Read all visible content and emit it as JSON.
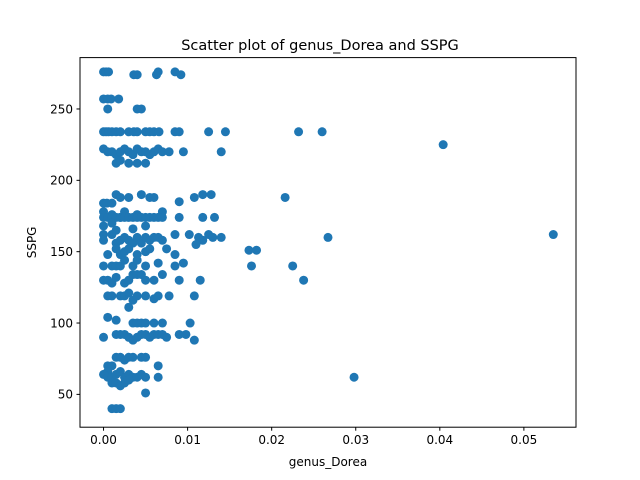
{
  "chart_data": {
    "type": "scatter",
    "title": "Scatter plot of genus_Dorea and SSPG",
    "xlabel": "genus_Dorea",
    "ylabel": "SSPG",
    "xlim": [
      -0.0028,
      0.0562
    ],
    "ylim": [
      27,
      286
    ],
    "xticks": [
      0.0,
      0.01,
      0.02,
      0.03,
      0.04,
      0.05
    ],
    "xtick_labels": [
      "0.00",
      "0.01",
      "0.02",
      "0.03",
      "0.04",
      "0.05"
    ],
    "yticks": [
      50,
      100,
      150,
      200,
      250
    ],
    "ytick_labels": [
      "50",
      "100",
      "150",
      "200",
      "250"
    ],
    "grid": false,
    "color": "#1f77b4",
    "points": [
      [
        0.0,
        276
      ],
      [
        0.0003,
        276
      ],
      [
        0.0006,
        276
      ],
      [
        0.0036,
        274
      ],
      [
        0.004,
        274
      ],
      [
        0.0063,
        274
      ],
      [
        0.0065,
        276
      ],
      [
        0.0085,
        276
      ],
      [
        0.0092,
        274
      ],
      [
        0.0,
        257
      ],
      [
        0.0005,
        257
      ],
      [
        0.0009,
        257
      ],
      [
        0.0018,
        257
      ],
      [
        0.0005,
        250
      ],
      [
        0.004,
        250
      ],
      [
        0.0045,
        250
      ],
      [
        0.0,
        234
      ],
      [
        0.0003,
        234
      ],
      [
        0.0006,
        234
      ],
      [
        0.001,
        234
      ],
      [
        0.0015,
        234
      ],
      [
        0.002,
        234
      ],
      [
        0.003,
        234
      ],
      [
        0.0036,
        234
      ],
      [
        0.004,
        234
      ],
      [
        0.005,
        234
      ],
      [
        0.0055,
        234
      ],
      [
        0.006,
        234
      ],
      [
        0.0066,
        234
      ],
      [
        0.0085,
        234
      ],
      [
        0.009,
        234
      ],
      [
        0.0125,
        234
      ],
      [
        0.0145,
        234
      ],
      [
        0.0232,
        234
      ],
      [
        0.026,
        234
      ],
      [
        0.0,
        222
      ],
      [
        0.0005,
        220
      ],
      [
        0.001,
        220
      ],
      [
        0.0015,
        218
      ],
      [
        0.002,
        220
      ],
      [
        0.0025,
        222
      ],
      [
        0.003,
        220
      ],
      [
        0.0035,
        218
      ],
      [
        0.004,
        222
      ],
      [
        0.0045,
        220
      ],
      [
        0.005,
        220
      ],
      [
        0.0055,
        218
      ],
      [
        0.006,
        220
      ],
      [
        0.0065,
        222
      ],
      [
        0.007,
        220
      ],
      [
        0.0078,
        220
      ],
      [
        0.0095,
        220
      ],
      [
        0.014,
        220
      ],
      [
        0.0404,
        225
      ],
      [
        0.0015,
        212
      ],
      [
        0.002,
        214
      ],
      [
        0.003,
        212
      ],
      [
        0.004,
        212
      ],
      [
        0.005,
        212
      ],
      [
        0.0,
        184
      ],
      [
        0.0004,
        184
      ],
      [
        0.001,
        184
      ],
      [
        0.0015,
        190
      ],
      [
        0.002,
        188
      ],
      [
        0.003,
        188
      ],
      [
        0.0045,
        190
      ],
      [
        0.0055,
        188
      ],
      [
        0.006,
        188
      ],
      [
        0.009,
        185
      ],
      [
        0.0108,
        188
      ],
      [
        0.0118,
        190
      ],
      [
        0.0128,
        190
      ],
      [
        0.0216,
        188
      ],
      [
        0.0,
        178
      ],
      [
        0.001,
        176
      ],
      [
        0.002,
        174
      ],
      [
        0.0025,
        178
      ],
      [
        0.004,
        176
      ],
      [
        0.007,
        178
      ],
      [
        0.0,
        174
      ],
      [
        0.0005,
        174
      ],
      [
        0.001,
        174
      ],
      [
        0.0015,
        174
      ],
      [
        0.002,
        174
      ],
      [
        0.0025,
        174
      ],
      [
        0.003,
        174
      ],
      [
        0.0035,
        174
      ],
      [
        0.004,
        174
      ],
      [
        0.0045,
        174
      ],
      [
        0.005,
        174
      ],
      [
        0.0055,
        174
      ],
      [
        0.006,
        174
      ],
      [
        0.0065,
        174
      ],
      [
        0.007,
        174
      ],
      [
        0.009,
        174
      ],
      [
        0.0118,
        174
      ],
      [
        0.0132,
        174
      ],
      [
        0.0,
        168
      ],
      [
        0.001,
        170
      ],
      [
        0.0015,
        165
      ],
      [
        0.0035,
        166
      ],
      [
        0.005,
        168
      ],
      [
        0.0,
        162
      ],
      [
        0.0,
        158
      ],
      [
        0.001,
        162
      ],
      [
        0.0015,
        156
      ],
      [
        0.002,
        158
      ],
      [
        0.0025,
        160
      ],
      [
        0.003,
        158
      ],
      [
        0.0035,
        156
      ],
      [
        0.004,
        160
      ],
      [
        0.0045,
        156
      ],
      [
        0.005,
        160
      ],
      [
        0.0055,
        158
      ],
      [
        0.006,
        160
      ],
      [
        0.0065,
        160
      ],
      [
        0.007,
        158
      ],
      [
        0.0085,
        162
      ],
      [
        0.0102,
        162
      ],
      [
        0.0113,
        160
      ],
      [
        0.0118,
        158
      ],
      [
        0.0125,
        162
      ],
      [
        0.013,
        160
      ],
      [
        0.014,
        160
      ],
      [
        0.0267,
        160
      ],
      [
        0.0535,
        162
      ],
      [
        0.0005,
        148
      ],
      [
        0.0015,
        152
      ],
      [
        0.002,
        148
      ],
      [
        0.0025,
        150
      ],
      [
        0.003,
        152
      ],
      [
        0.004,
        148
      ],
      [
        0.005,
        150
      ],
      [
        0.0055,
        152
      ],
      [
        0.0075,
        152
      ],
      [
        0.0085,
        148
      ],
      [
        0.011,
        155
      ],
      [
        0.0173,
        151
      ],
      [
        0.0182,
        151
      ],
      [
        0.0,
        140
      ],
      [
        0.001,
        140
      ],
      [
        0.0015,
        140
      ],
      [
        0.002,
        140
      ],
      [
        0.0025,
        144
      ],
      [
        0.0035,
        140
      ],
      [
        0.004,
        144
      ],
      [
        0.005,
        140
      ],
      [
        0.0065,
        142
      ],
      [
        0.0085,
        140
      ],
      [
        0.0095,
        142
      ],
      [
        0.0176,
        140
      ],
      [
        0.0225,
        140
      ],
      [
        0.0,
        130
      ],
      [
        0.0005,
        130
      ],
      [
        0.001,
        128
      ],
      [
        0.0015,
        132
      ],
      [
        0.0025,
        128
      ],
      [
        0.003,
        130
      ],
      [
        0.0035,
        134
      ],
      [
        0.004,
        134
      ],
      [
        0.0045,
        134
      ],
      [
        0.005,
        130
      ],
      [
        0.006,
        130
      ],
      [
        0.007,
        134
      ],
      [
        0.009,
        130
      ],
      [
        0.0115,
        130
      ],
      [
        0.0238,
        130
      ],
      [
        0.0005,
        119
      ],
      [
        0.001,
        119
      ],
      [
        0.002,
        119
      ],
      [
        0.0025,
        119
      ],
      [
        0.003,
        121
      ],
      [
        0.0035,
        116
      ],
      [
        0.004,
        119
      ],
      [
        0.005,
        119
      ],
      [
        0.006,
        117
      ],
      [
        0.0065,
        119
      ],
      [
        0.0078,
        119
      ],
      [
        0.0108,
        119
      ],
      [
        0.003,
        111
      ],
      [
        0.0005,
        104
      ],
      [
        0.0015,
        102
      ],
      [
        0.0035,
        100
      ],
      [
        0.004,
        100
      ],
      [
        0.0045,
        100
      ],
      [
        0.005,
        100
      ],
      [
        0.006,
        100
      ],
      [
        0.007,
        100
      ],
      [
        0.0103,
        100
      ],
      [
        0.0,
        90
      ],
      [
        0.0015,
        92
      ],
      [
        0.002,
        92
      ],
      [
        0.0025,
        92
      ],
      [
        0.003,
        90
      ],
      [
        0.0035,
        88
      ],
      [
        0.004,
        90
      ],
      [
        0.0045,
        92
      ],
      [
        0.005,
        92
      ],
      [
        0.0055,
        90
      ],
      [
        0.006,
        92
      ],
      [
        0.0065,
        92
      ],
      [
        0.007,
        92
      ],
      [
        0.0075,
        90
      ],
      [
        0.009,
        92
      ],
      [
        0.0098,
        92
      ],
      [
        0.0108,
        88
      ],
      [
        0.0015,
        76
      ],
      [
        0.002,
        76
      ],
      [
        0.0025,
        74
      ],
      [
        0.003,
        76
      ],
      [
        0.0035,
        76
      ],
      [
        0.0045,
        76
      ],
      [
        0.005,
        76
      ],
      [
        0.0065,
        70
      ],
      [
        0.0005,
        70
      ],
      [
        0.001,
        70
      ],
      [
        0.0005,
        66
      ],
      [
        0.0,
        64
      ],
      [
        0.0005,
        62
      ],
      [
        0.001,
        62
      ],
      [
        0.0015,
        64
      ],
      [
        0.002,
        66
      ],
      [
        0.0025,
        62
      ],
      [
        0.003,
        64
      ],
      [
        0.0035,
        62
      ],
      [
        0.004,
        62
      ],
      [
        0.0045,
        64
      ],
      [
        0.005,
        62
      ],
      [
        0.0065,
        62
      ],
      [
        0.0298,
        62
      ],
      [
        0.001,
        58
      ],
      [
        0.0015,
        58
      ],
      [
        0.002,
        56
      ],
      [
        0.0025,
        58
      ],
      [
        0.003,
        60
      ],
      [
        0.005,
        51
      ],
      [
        0.001,
        40
      ],
      [
        0.0015,
        40
      ],
      [
        0.002,
        40
      ]
    ]
  }
}
